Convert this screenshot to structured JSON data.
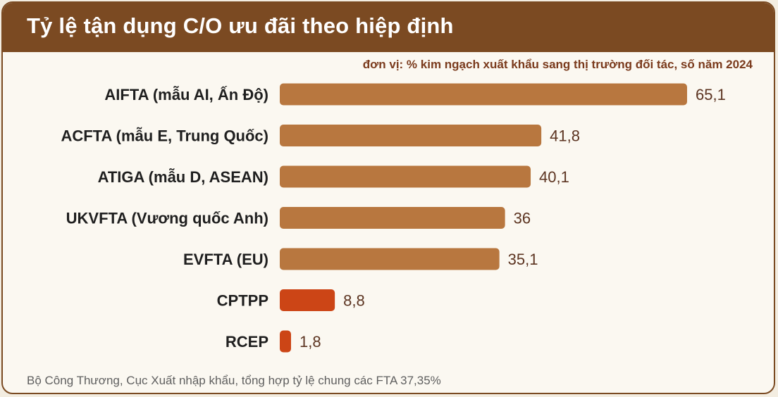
{
  "header": {
    "title": "Tỷ lệ tận dụng C/O ưu đãi theo hiệp định"
  },
  "subtitle": "đơn vị: % kim ngạch xuất khẩu sang thị trường đối tác, số năm 2024",
  "footer": "Bộ Công Thương, Cục Xuất nhập khẩu, tổng hợp tỷ lệ chung các FTA 37,35%",
  "colors": {
    "bar_main": "#b8773f",
    "bar_highlight": "#cc4516",
    "value_text": "#5c3421",
    "category_text": "#1f1f1f",
    "header_bg": "#7b4a22"
  },
  "chart_data": {
    "type": "bar",
    "orientation": "horizontal",
    "categories": [
      "AIFTA (mẫu AI, Ấn Độ)",
      "ACFTA (mẫu E, Trung Quốc)",
      "ATIGA (mẫu D, ASEAN)",
      "UKVFTA (Vương quốc Anh)",
      "EVFTA (EU)",
      "CPTPP",
      "RCEP"
    ],
    "values": [
      65.1,
      41.8,
      40.1,
      36,
      35.1,
      8.8,
      1.8
    ],
    "value_labels": [
      "65,1",
      "41,8",
      "40,1",
      "36",
      "35,1",
      "8,8",
      "1,8"
    ],
    "highlighted": [
      false,
      false,
      false,
      false,
      false,
      true,
      true
    ],
    "xlim": [
      0,
      65.1
    ],
    "grid": false,
    "legend": "none"
  }
}
